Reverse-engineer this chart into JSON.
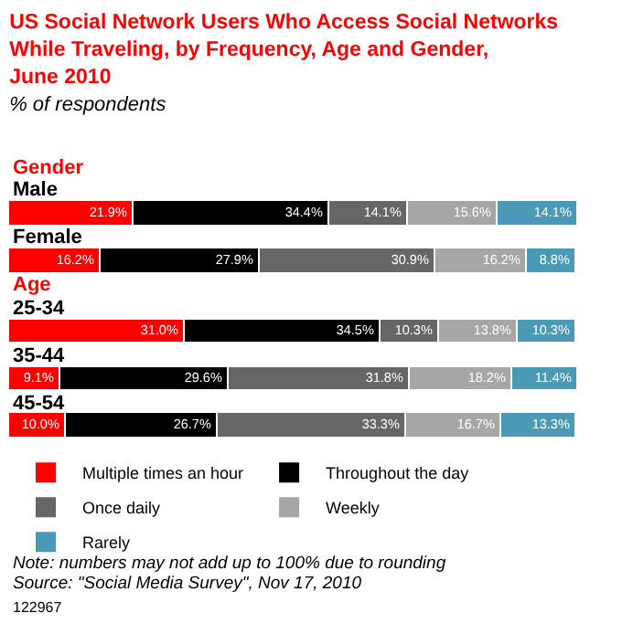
{
  "chart_data": {
    "type": "bar",
    "orientation": "horizontal",
    "stacked": true,
    "title": "US Social Network Users Who Access Social Networks While Traveling, by Frequency, Age and Gender, June 2010",
    "subtitle": "% of respondents",
    "categories": [
      "Male",
      "Female",
      "25-34",
      "35-44",
      "45-54"
    ],
    "series": [
      {
        "name": "Multiple times an hour",
        "color": "#ff0000",
        "values": [
          21.9,
          16.2,
          31.0,
          9.1,
          10.0
        ],
        "value_labels": [
          "21.9%",
          "16.2%",
          "31.0%",
          "9.1%",
          "10.0%"
        ]
      },
      {
        "name": "Throughout the day",
        "color": "#000000",
        "values": [
          34.4,
          27.9,
          34.5,
          29.6,
          26.7
        ],
        "value_labels": [
          "34.4%",
          "27.9%",
          "34.5%",
          "29.6%",
          "26.7%"
        ]
      },
      {
        "name": "Once daily",
        "color": "#666666",
        "values": [
          14.1,
          30.9,
          10.3,
          31.8,
          33.3
        ],
        "value_labels": [
          "14.1%",
          "30.9%",
          "10.3%",
          "31.8%",
          "33.3%"
        ]
      },
      {
        "name": "Weekly",
        "color": "#a6a6a6",
        "values": [
          15.6,
          16.2,
          13.8,
          18.2,
          16.7
        ],
        "value_labels": [
          "15.6%",
          "16.2%",
          "13.8%",
          "18.2%",
          "16.7%"
        ]
      },
      {
        "name": "Rarely",
        "color": "#4a9ab5",
        "values": [
          14.1,
          8.8,
          10.3,
          11.4,
          13.3
        ],
        "value_labels": [
          "14.1%",
          "8.8%",
          "10.3%",
          "11.4%",
          "13.3%"
        ]
      }
    ],
    "annotations": [
      "Gender",
      "Age",
      "Note: numbers may not add up to 100% due to rounding",
      "Source: \"Social Media Survey\", Nov 17, 2010",
      "122967"
    ],
    "legend": "bottom",
    "tick_labels": false
  }
}
